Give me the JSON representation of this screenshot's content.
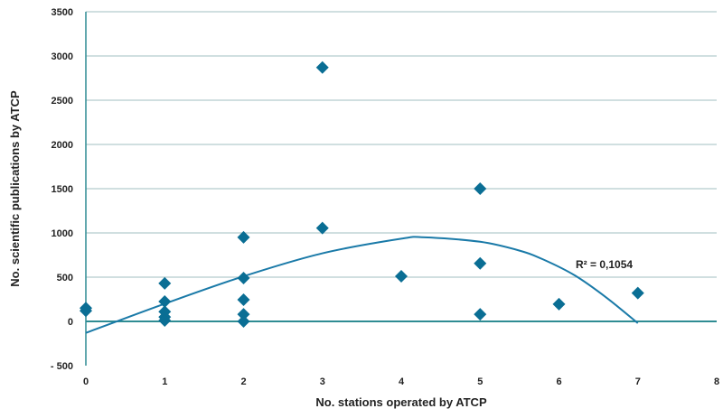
{
  "chart_data": {
    "type": "scatter",
    "xlabel": "No. stations operated by ATCP",
    "ylabel": "No. scientific publications by ATCP",
    "xlim": [
      0,
      8
    ],
    "ylim": [
      -500,
      3500
    ],
    "x_ticks": [
      "0",
      "1",
      "2",
      "3",
      "4",
      "5",
      "6",
      "7",
      "8"
    ],
    "y_ticks": [
      "- 500",
      "0",
      "500",
      "1000",
      "1500",
      "2000",
      "2500",
      "3000",
      "3500"
    ],
    "grid": true,
    "points": [
      {
        "x": 0,
        "y": 150
      },
      {
        "x": 0,
        "y": 120
      },
      {
        "x": 1,
        "y": 430
      },
      {
        "x": 1,
        "y": 225
      },
      {
        "x": 1,
        "y": 110
      },
      {
        "x": 1,
        "y": 50
      },
      {
        "x": 1,
        "y": 10
      },
      {
        "x": 2,
        "y": 950
      },
      {
        "x": 2,
        "y": 490
      },
      {
        "x": 2,
        "y": 245
      },
      {
        "x": 2,
        "y": 80
      },
      {
        "x": 2,
        "y": 0
      },
      {
        "x": 3,
        "y": 2870
      },
      {
        "x": 3,
        "y": 1055
      },
      {
        "x": 4,
        "y": 510
      },
      {
        "x": 5,
        "y": 1500
      },
      {
        "x": 5,
        "y": 655
      },
      {
        "x": 5,
        "y": 80
      },
      {
        "x": 6,
        "y": 195
      },
      {
        "x": 7,
        "y": 320
      }
    ],
    "trendline": {
      "type": "polynomial",
      "label": "R² = 0,1054",
      "points": [
        [
          0,
          -130
        ],
        [
          1,
          200
        ],
        [
          2,
          510
        ],
        [
          3,
          770
        ],
        [
          4,
          935
        ],
        [
          4.3,
          950
        ],
        [
          5,
          900
        ],
        [
          5.5,
          800
        ],
        [
          5.8,
          700
        ],
        [
          6.2,
          520
        ],
        [
          6.6,
          270
        ],
        [
          7,
          -20
        ]
      ]
    },
    "colors": {
      "points": "#0a6e94",
      "trendline": "#1a7aa8",
      "grid": "#b4ccce",
      "zero_line": "#2f8c93"
    }
  }
}
